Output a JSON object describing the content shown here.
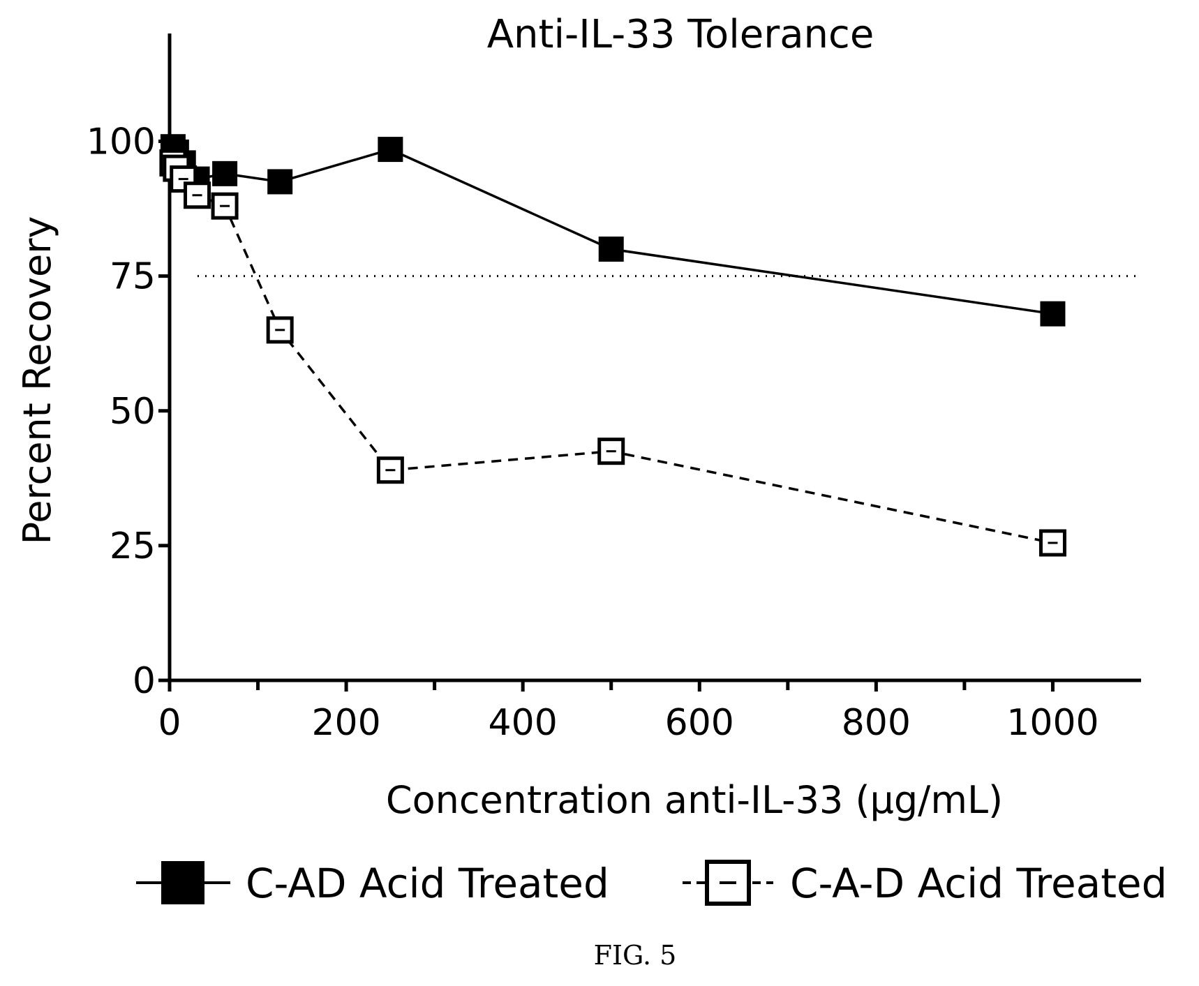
{
  "chart_data": {
    "type": "line",
    "title": "Anti-IL-33 Tolerance",
    "xlabel": "Concentration anti-IL-33 (µg/mL)",
    "ylabel": "Percent Recovery",
    "xlim": [
      0,
      1100
    ],
    "ylim": [
      0,
      120
    ],
    "xticks": [
      0,
      200,
      400,
      600,
      800,
      1000
    ],
    "xtick_labels": [
      "0",
      "200",
      "400",
      "600",
      "800",
      "1000"
    ],
    "yticks": [
      0,
      25,
      50,
      75,
      100
    ],
    "ytick_labels": [
      "0",
      "25",
      "50",
      "75",
      "100"
    ],
    "reference_line": {
      "y": 75,
      "style": "dotted"
    },
    "grid": false,
    "legend_position": "bottom",
    "series": [
      {
        "name": "C-AD Acid Treated",
        "marker": "filled-square",
        "line_style": "solid",
        "color": "#000000",
        "x": [
          3.9,
          7.8,
          15.6,
          31.25,
          62.5,
          125,
          250,
          500,
          1000
        ],
        "y": [
          99,
          98,
          96,
          93,
          94,
          92.5,
          98.5,
          80,
          68
        ]
      },
      {
        "name": "C-A-D Acid Treated",
        "marker": "open-square",
        "line_style": "dashed",
        "color": "#000000",
        "x": [
          3.9,
          7.8,
          15.6,
          31.25,
          62.5,
          125,
          250,
          500,
          1000
        ],
        "y": [
          96,
          95,
          93,
          90,
          88,
          65,
          39,
          42.5,
          25.5
        ]
      }
    ]
  },
  "caption": "FIG. 5"
}
